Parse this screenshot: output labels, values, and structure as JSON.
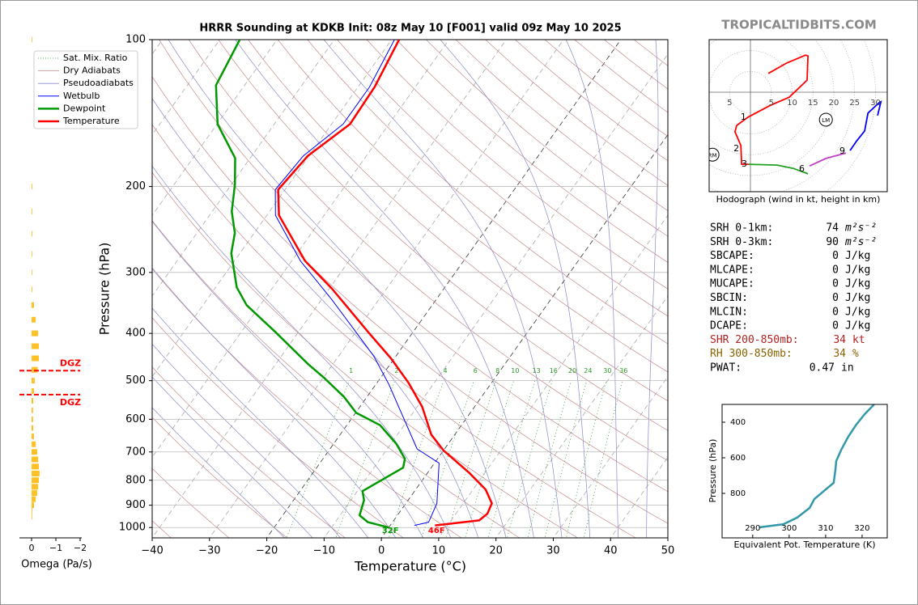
{
  "watermark": "TROPICALTIDBITS.COM",
  "chart_data": [
    {
      "type": "skewt",
      "title": "HRRR Sounding at KDKB Init: 08z May 10 [F001] valid 09z May 10 2025",
      "xlabel": "Temperature (°C)",
      "ylabel": "Pressure (hPa)",
      "xlim": [
        -40,
        50
      ],
      "ylim": [
        1050,
        100
      ],
      "yscale": "log",
      "xticks": [
        {
          "value": -40,
          "label": "−40"
        },
        {
          "value": -30,
          "label": "−30"
        },
        {
          "value": -20,
          "label": "−20"
        },
        {
          "value": -10,
          "label": "−10"
        },
        0,
        10,
        20,
        30,
        40,
        50
      ],
      "yticks": [
        100,
        200,
        300,
        400,
        500,
        600,
        700,
        800,
        900,
        1000
      ],
      "grid": true,
      "legend": "upper left",
      "reference_lines": [
        {
          "name": "Sat. Mix. Ratio",
          "color": "#2a9a2a"
        },
        {
          "name": "Dry Adiabats",
          "color": "#c98a8a"
        },
        {
          "name": "Pseudoadiabats",
          "color": "#8a8ac9"
        }
      ],
      "mixing_ratios": [
        1,
        2,
        4,
        6,
        8,
        10,
        13,
        16,
        20,
        24,
        30,
        36
      ],
      "series": [
        {
          "name": "Wetbulb",
          "color": "#0000ff",
          "pressure": [
            990,
            975,
            892,
            738,
            690,
            588,
            508,
            445,
            341,
            284,
            229,
            203,
            173,
            149,
            125,
            100
          ],
          "values": [
            4.2,
            6.3,
            5.4,
            0.8,
            -4.8,
            -11.6,
            -17.8,
            -23.9,
            -38.2,
            -48.5,
            -58.5,
            -61.7,
            -61.0,
            -58.0,
            -58.0,
            -59.5
          ]
        },
        {
          "name": "Dewpoint",
          "color": "#009900",
          "surface_label": "32F",
          "pressure": [
            1000,
            975,
            944,
            879,
            842,
            754,
            723,
            673,
            617,
            582,
            539,
            493,
            462,
            397,
            350,
            322,
            274,
            249,
            225,
            198,
            175,
            149,
            124,
            100
          ],
          "values": [
            0.0,
            -4.3,
            -6.6,
            -7.7,
            -9.1,
            -4.9,
            -5.7,
            -9.1,
            -14.2,
            -19.9,
            -24.1,
            -29.9,
            -34.4,
            -44.1,
            -52.4,
            -56.3,
            -61.5,
            -63.4,
            -66.6,
            -69.4,
            -72.6,
            -79.9,
            -85.0,
            -86.5
          ]
        },
        {
          "name": "Temperature",
          "color": "#ff0000",
          "surface_label": "46F",
          "pressure": [
            990,
            967,
            937,
            892,
            836,
            774,
            695,
            645,
            566,
            505,
            450,
            397,
            324,
            284,
            229,
            203,
            173,
            149,
            125,
            100
          ],
          "values": [
            7.8,
            14.9,
            15.5,
            15.0,
            12.2,
            7.4,
            0.0,
            -4.1,
            -9.1,
            -14.5,
            -20.6,
            -27.9,
            -39.5,
            -47.7,
            -57.9,
            -61.2,
            -60.2,
            -56.8,
            -57.1,
            -58.7
          ]
        }
      ]
    },
    {
      "type": "omega",
      "xlabel": "Omega (Pa/s)",
      "xlim": [
        0.5,
        -2
      ],
      "xticks": [
        0,
        {
          "value": -1,
          "label": "−1"
        },
        {
          "value": -2,
          "label": "−2"
        }
      ],
      "ylim": [
        1050,
        100
      ],
      "color": "#ffc125",
      "pressure": [
        100,
        200,
        225,
        250,
        275,
        300,
        325,
        350,
        375,
        400,
        425,
        450,
        475,
        500,
        525,
        550,
        575,
        600,
        625,
        650,
        675,
        700,
        725,
        750,
        775,
        800,
        825,
        850,
        875,
        900,
        925,
        950
      ],
      "values": [
        -0.02,
        -0.03,
        -0.03,
        -0.03,
        -0.02,
        -0.02,
        -0.03,
        -0.1,
        -0.17,
        -0.27,
        -0.3,
        -0.3,
        -0.25,
        -0.13,
        -0.1,
        -0.07,
        -0.06,
        -0.06,
        -0.07,
        -0.1,
        -0.17,
        -0.23,
        -0.27,
        -0.3,
        -0.33,
        -0.3,
        -0.27,
        -0.23,
        -0.17,
        -0.1,
        -0.03,
        -0.01
      ],
      "dgz": {
        "label": "DGZ",
        "bounds": [
          477,
          534
        ],
        "color": "#ff0000"
      }
    },
    {
      "type": "hodograph",
      "caption": "Hodograph (wind in kt, height in km)",
      "ring_labels": [
        {
          "value": -5,
          "label": "5"
        },
        5,
        10,
        15,
        20,
        25,
        30
      ],
      "segments": [
        {
          "color": "#ff0000",
          "u": [
            4.3,
            8.7,
            13.2,
            13.8,
            13.6,
            9.3,
            4.9,
            -0.6,
            -3.3,
            -3.7,
            -2.3,
            -2.1,
            -0.4
          ],
          "v": [
            4.5,
            7.0,
            8.9,
            8.7,
            2.9,
            -1.2,
            -3.1,
            -6.0,
            -8.0,
            -9.5,
            -12.8,
            -17.3,
            -17.3
          ]
        },
        {
          "color": "#22a022",
          "u": [
            -0.4,
            6.4,
            10.3,
            13.8
          ],
          "v": [
            -17.3,
            -17.5,
            -18.3,
            -19.6
          ]
        },
        {
          "color": "#c040c0",
          "u": [
            14.2,
            18.1,
            22.9
          ],
          "v": [
            -17.7,
            -15.9,
            -14.6
          ]
        },
        {
          "color": "#0000ff",
          "u": [
            23.9,
            25.4,
            27.4,
            28.2,
            30.9,
            31.3,
            30.5
          ],
          "v": [
            -14.0,
            -11.8,
            -9.3,
            -5.0,
            -2.5,
            -2.3,
            -5.6
          ]
        }
      ],
      "height_labels": [
        {
          "text": "1",
          "u": -0.6,
          "v": -6.0
        },
        {
          "text": "2",
          "u": -2.3,
          "v": -13.6
        },
        {
          "text": "3",
          "u": -0.4,
          "v": -17.3
        },
        {
          "text": "6",
          "u": 13.4,
          "v": -18.4
        },
        {
          "text": "9",
          "u": 23.1,
          "v": -14.2
        }
      ],
      "storm_motions": [
        {
          "label": "RM",
          "u": -9.1,
          "v": -15.0
        },
        {
          "label": "LM",
          "u": 18.1,
          "v": -6.6
        }
      ]
    },
    {
      "type": "line",
      "xlabel": "Equivalent Pot. Temperature (K)",
      "ylabel": "Pressure (hPa)",
      "xlim": [
        281.6,
        326.9
      ],
      "ylim": [
        1050,
        300
      ],
      "xticks": [
        290,
        300,
        310,
        320
      ],
      "yticks": [
        400,
        600,
        800
      ],
      "color": "#3399aa",
      "x": [
        291.8,
        298.4,
        302.2,
        305.6,
        306.9,
        312.2,
        312.7,
        312.9,
        314.4,
        316.2,
        318.4,
        320.7,
        323.3
      ],
      "y": [
        991,
        973,
        936,
        882,
        832,
        741,
        664,
        618,
        550,
        482,
        414,
        355,
        300
      ]
    }
  ],
  "parameters": [
    {
      "label": "SRH 0-1km:",
      "value": 74,
      "unit": "m²s⁻²",
      "color": "#000000"
    },
    {
      "label": "SRH 0-3km:",
      "value": 90,
      "unit": "m²s⁻²",
      "color": "#000000"
    },
    {
      "label": "SBCAPE:",
      "value": 0,
      "unit": "J/kg",
      "color": "#000000"
    },
    {
      "label": "MLCAPE:",
      "value": 0,
      "unit": "J/kg",
      "color": "#000000"
    },
    {
      "label": "MUCAPE:",
      "value": 0,
      "unit": "J/kg",
      "color": "#000000"
    },
    {
      "label": "SBCIN:",
      "value": 0,
      "unit": "J/kg",
      "color": "#000000"
    },
    {
      "label": "MLCIN:",
      "value": 0,
      "unit": "J/kg",
      "color": "#000000"
    },
    {
      "label": "DCAPE:",
      "value": 0,
      "unit": "J/kg",
      "color": "#000000"
    },
    {
      "label": "SHR 200-850mb:",
      "value": 34,
      "unit": "kt",
      "color": "#b22222"
    },
    {
      "label": "RH 300-850mb:",
      "value": 34,
      "unit": "%",
      "color": "#8b6200"
    },
    {
      "label": "PWAT:",
      "value": 0.47,
      "unit": "in",
      "color": "#000000"
    }
  ]
}
